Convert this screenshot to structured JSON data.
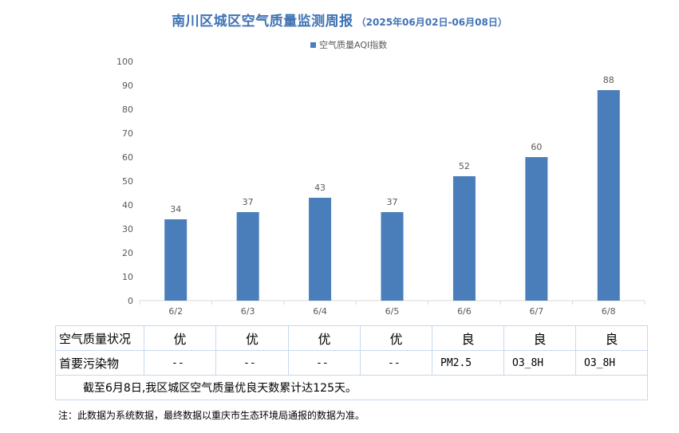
{
  "chart_data": {
    "type": "bar",
    "title": "南川区城区空气质量监测周报",
    "subtitle": "（2025年06月02日-06月08日）",
    "categories": [
      "6/2",
      "6/3",
      "6/4",
      "6/5",
      "6/6",
      "6/7",
      "6/8"
    ],
    "series": [
      {
        "name": "空气质量AQI指数",
        "values": [
          34,
          37,
          43,
          37,
          52,
          60,
          88
        ],
        "color": "#4a7ebb"
      }
    ],
    "ylim": [
      0,
      100
    ],
    "yticks": [
      0,
      10,
      20,
      30,
      40,
      50,
      60,
      70,
      80,
      90,
      100
    ],
    "legend_position": "top-center",
    "grid": false,
    "data_labels": true
  },
  "table": {
    "level_row_label": "空气质量状况",
    "levels": [
      "优",
      "优",
      "优",
      "优",
      "良",
      "良",
      "良"
    ],
    "pollutant_row_label": "首要污染物",
    "pollutants": [
      "--",
      "--",
      "--",
      "--",
      "PM2.5",
      "O3_8H",
      "O3_8H"
    ],
    "summary": "截至6月8日,我区城区空气质量优良天数累计达125天。"
  },
  "footnote": "注：此数据为系统数据，最终数据以重庆市生态环境局通报的数据为准。"
}
